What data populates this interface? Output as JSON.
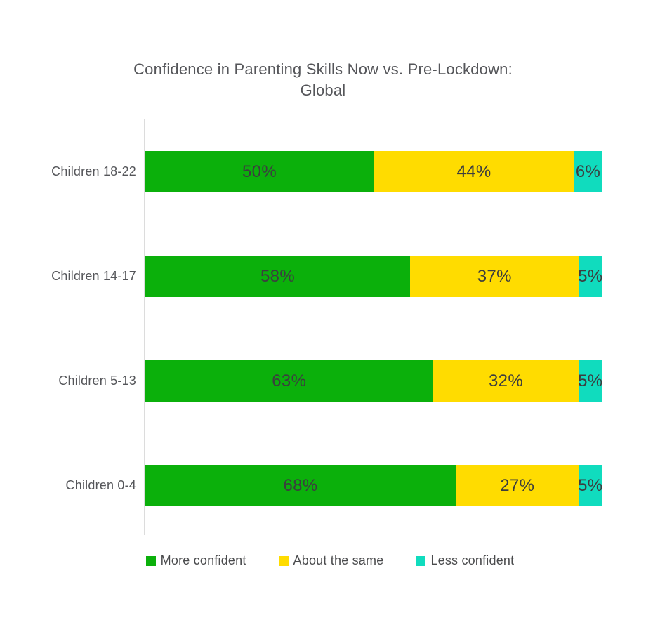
{
  "title": {
    "line1": "Confidence in Parenting Skills Now vs. Pre-Lockdown:",
    "line2": "Global"
  },
  "chart_data": {
    "type": "bar",
    "orientation": "horizontal-stacked",
    "title": "Confidence in Parenting Skills Now vs. Pre-Lockdown: Global",
    "categories": [
      "Children 18-22",
      "Children 14-17",
      "Children 5-13",
      "Children 0-4"
    ],
    "series": [
      {
        "name": "More confident",
        "color": "#0BB00B",
        "values": [
          50,
          58,
          63,
          68
        ]
      },
      {
        "name": "About the same",
        "color": "#FFDC00",
        "values": [
          44,
          37,
          32,
          27
        ]
      },
      {
        "name": "Less confident",
        "color": "#10DCBE",
        "values": [
          6,
          5,
          5,
          5
        ]
      }
    ],
    "value_suffix": "%",
    "value_labels": [
      [
        "50%",
        "44%",
        "6%"
      ],
      [
        "58%",
        "37%",
        "5%"
      ],
      [
        "63%",
        "32%",
        "5%"
      ],
      [
        "68%",
        "27%",
        "5%"
      ]
    ],
    "xlim": [
      0,
      100
    ],
    "grid": false,
    "legend_position": "bottom",
    "colors": {
      "title_text": "#55565A",
      "category_text": "#55565A",
      "value_text": "#3C3D3F",
      "axis_line": "#DCDCDC",
      "background": "#FFFFFF"
    }
  }
}
